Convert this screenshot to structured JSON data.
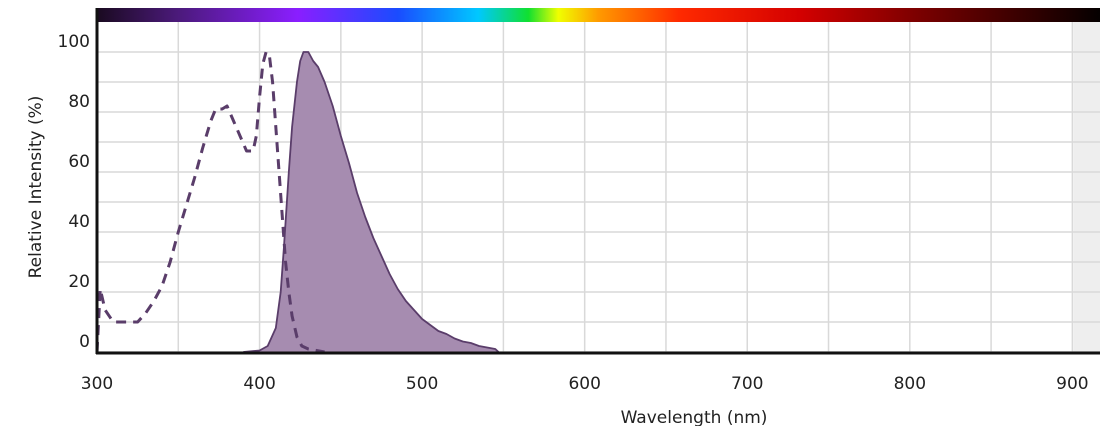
{
  "chart_data": {
    "type": "line",
    "x_label": "Wavelength (nm)",
    "y_label": "Relative Intensity (%)",
    "xlim": [
      300,
      917
    ],
    "ylim": [
      0,
      110
    ],
    "xticks": [
      300,
      400,
      500,
      600,
      700,
      800,
      900
    ],
    "yticks": [
      0,
      20,
      40,
      60,
      80,
      100
    ],
    "xminor": [
      350,
      450,
      550,
      650,
      750,
      850
    ],
    "yminor": [
      10,
      30,
      50,
      70,
      90
    ],
    "grid": true,
    "series": [
      {
        "color": "#5a3d6a",
        "dash": true,
        "fill": null,
        "x": [
          300,
          302,
          305,
          310,
          320,
          325,
          330,
          335,
          340,
          345,
          350,
          355,
          360,
          365,
          370,
          373,
          377,
          380,
          384,
          388,
          392,
          396,
          398,
          400,
          402,
          404,
          406,
          408,
          410,
          412,
          414,
          416,
          418,
          420,
          423,
          426,
          430,
          435,
          440
        ],
        "values": [
          0,
          21,
          14,
          10,
          10,
          10,
          13,
          17,
          22,
          30,
          40,
          49,
          58,
          68,
          77,
          81,
          81,
          82,
          77,
          72,
          67,
          67,
          72,
          85,
          96,
          100,
          99,
          90,
          75,
          60,
          45,
          30,
          20,
          12,
          5,
          2,
          1,
          0.5,
          0
        ]
      },
      {
        "color": "#5a3d6a",
        "dash": false,
        "fill": "#a68cb0",
        "x": [
          390,
          400,
          405,
          410,
          413,
          415,
          418,
          420,
          423,
          425,
          427,
          430,
          433,
          436,
          440,
          445,
          450,
          455,
          460,
          465,
          470,
          475,
          480,
          485,
          490,
          495,
          500,
          505,
          510,
          515,
          520,
          525,
          530,
          535,
          540,
          545,
          547
        ],
        "values": [
          0,
          0.5,
          2,
          8,
          20,
          35,
          60,
          75,
          90,
          97,
          100,
          100,
          97,
          95,
          90,
          82,
          72,
          63,
          53,
          45,
          38,
          32,
          26,
          21,
          17,
          14,
          11,
          9,
          7,
          6,
          4.5,
          3.5,
          3,
          2,
          1.5,
          1,
          0
        ]
      }
    ]
  }
}
